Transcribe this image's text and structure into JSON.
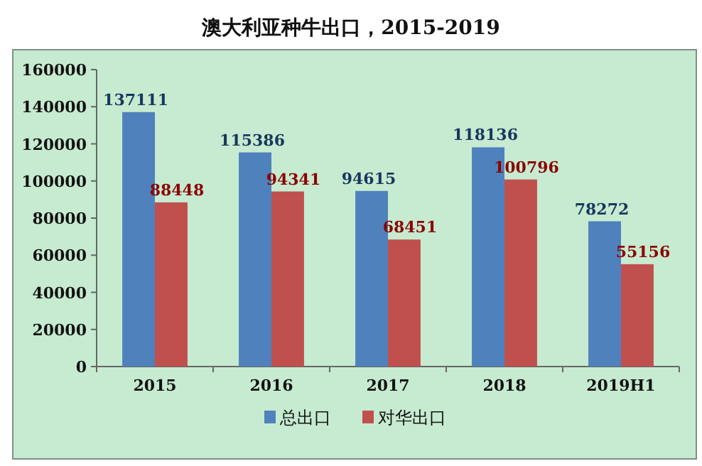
{
  "chart_data": {
    "type": "bar",
    "title": "澳大利亚种牛出口，2015-2019",
    "categories": [
      "2015",
      "2016",
      "2017",
      "2018",
      "2019H1"
    ],
    "series": [
      {
        "name": "总出口",
        "color": "#4f81bd",
        "values": [
          137111,
          115386,
          94615,
          118136,
          78272
        ]
      },
      {
        "name": "对华出口",
        "color": "#c0504d",
        "values": [
          88448,
          94341,
          68451,
          100796,
          55156
        ]
      }
    ],
    "ylim": [
      0,
      160000
    ],
    "yticks": [
      0,
      20000,
      40000,
      60000,
      80000,
      100000,
      120000,
      140000,
      160000
    ],
    "data_labels": true,
    "grid": false,
    "legend": "bottom"
  }
}
